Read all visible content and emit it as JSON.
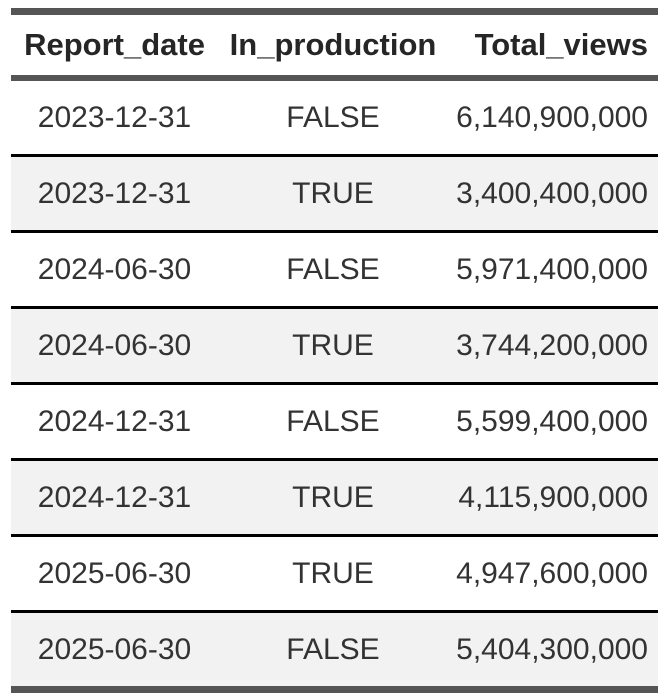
{
  "table": {
    "columns": [
      {
        "label": "Report_date"
      },
      {
        "label": "In_production"
      },
      {
        "label": "Total_views"
      }
    ],
    "rows": [
      {
        "report_date": "2023-12-31",
        "in_production": "FALSE",
        "total_views": "6,140,900,000"
      },
      {
        "report_date": "2023-12-31",
        "in_production": "TRUE",
        "total_views": "3,400,400,000"
      },
      {
        "report_date": "2024-06-30",
        "in_production": "FALSE",
        "total_views": "5,971,400,000"
      },
      {
        "report_date": "2024-06-30",
        "in_production": "TRUE",
        "total_views": "3,744,200,000"
      },
      {
        "report_date": "2024-12-31",
        "in_production": "FALSE",
        "total_views": "5,599,400,000"
      },
      {
        "report_date": "2024-12-31",
        "in_production": "TRUE",
        "total_views": "4,115,900,000"
      },
      {
        "report_date": "2025-06-30",
        "in_production": "TRUE",
        "total_views": "4,947,600,000"
      },
      {
        "report_date": "2025-06-30",
        "in_production": "FALSE",
        "total_views": "5,404,300,000"
      }
    ]
  },
  "colors": {
    "outer_bar": "#555555",
    "row_divider": "#000000",
    "stripe_row_bg": "#f2f2f2",
    "header_text": "#262626",
    "body_text": "#333333"
  },
  "chart_data": {
    "type": "table",
    "columns": [
      "Report_date",
      "In_production",
      "Total_views"
    ],
    "rows": [
      [
        "2023-12-31",
        false,
        6140900000
      ],
      [
        "2023-12-31",
        true,
        3400400000
      ],
      [
        "2024-06-30",
        false,
        5971400000
      ],
      [
        "2024-06-30",
        true,
        3744200000
      ],
      [
        "2024-12-31",
        false,
        5599400000
      ],
      [
        "2024-12-31",
        true,
        4115900000
      ],
      [
        "2025-06-30",
        true,
        4947600000
      ],
      [
        "2025-06-30",
        false,
        5404300000
      ]
    ]
  }
}
